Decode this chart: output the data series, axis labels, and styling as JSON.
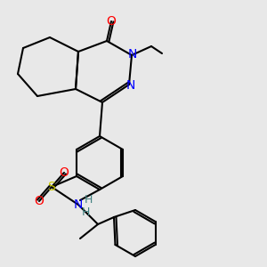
{
  "bg_color": "#e8e8e8",
  "bond_color": "#000000",
  "bond_width": 1.5,
  "atom_colors": {
    "O": "#ff0000",
    "N": "#0000ff",
    "S": "#cccc00",
    "C": "#000000",
    "H": "#408080"
  },
  "font_size": 8.5
}
